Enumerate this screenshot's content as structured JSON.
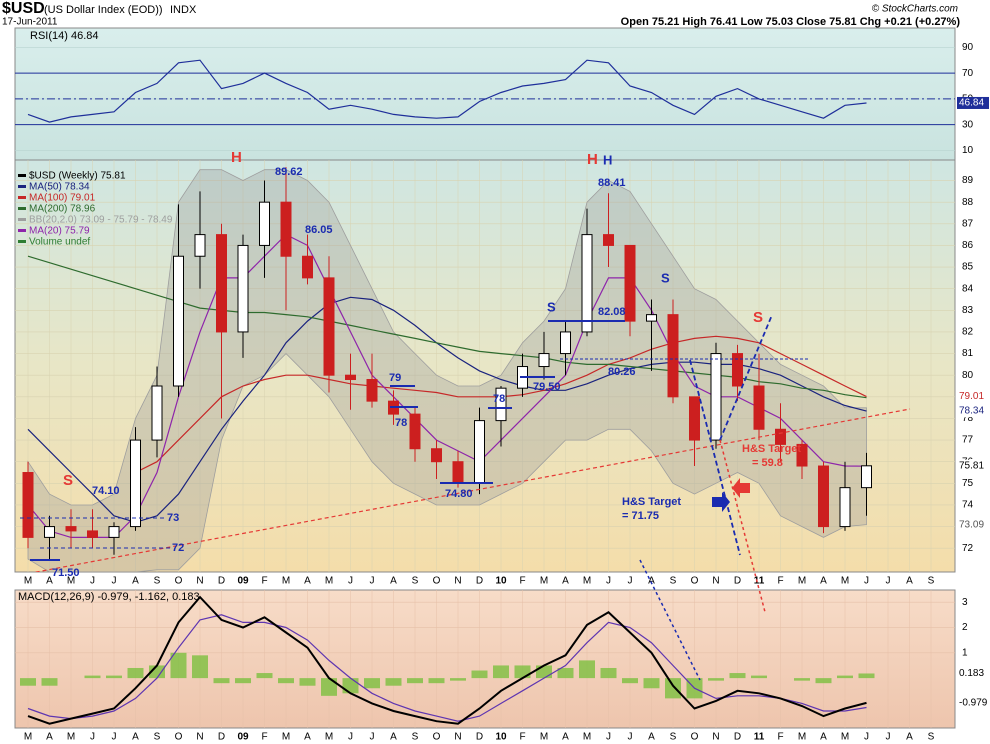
{
  "header": {
    "symbol": "$USD",
    "name": "(US Dollar Index (EOD))",
    "exchange": "INDX",
    "date": "17-Jun-2011",
    "stats": "Open 75.21  High 76.41  Low 75.03  Close 75.81  Chg +0.21 (+0.27%)",
    "credit": "© StockCharts.com"
  },
  "annotations": {
    "h1": "H",
    "h2": "H",
    "h3": "H",
    "s1": "S",
    "s2": "S",
    "s3": "S",
    "s4": "S",
    "p1": "89.62",
    "p2": "86.05",
    "p3": "88.41",
    "p4": "82.08",
    "p5": "80.26",
    "p6": "79.50",
    "p7": "79",
    "p8": "78",
    "p9": "78",
    "p10": "74.80",
    "p11": "74.10",
    "p12": "73",
    "p13": "72",
    "p14": "71.50",
    "t1a": "H&S Target",
    "t1b": "= 71.75",
    "t2a": "H&S Target",
    "t2b": "= 59.8"
  },
  "chart_data": [
    {
      "type": "line",
      "title": "RSI(14) 46.84",
      "color": "#1f2f9a",
      "ylim": [
        2.6,
        105
      ],
      "yticks": [
        10,
        30,
        50,
        70,
        90
      ],
      "reference_lines": [
        30,
        70
      ],
      "center_line": 50,
      "grid": true,
      "values": [
        38,
        32,
        36,
        38,
        40,
        55,
        62,
        78,
        80,
        58,
        62,
        70,
        62,
        55,
        42,
        45,
        42,
        38,
        36,
        35,
        36,
        48,
        55,
        60,
        62,
        65,
        80,
        78,
        60,
        55,
        45,
        38,
        52,
        58,
        50,
        45,
        40,
        35,
        45,
        46.84,
        null,
        null,
        null
      ]
    },
    {
      "type": "candlestick",
      "grid": true,
      "up_color": "#ffffff",
      "down_color": "#cc1f1f",
      "legend": [
        "$USD (Weekly) 75.81",
        "MA(50) 78.34",
        "MA(100) 79.01",
        "MA(200) 78.96",
        "BB(20,2.0) 73.09 - 75.79 - 78.49",
        "MA(20) 75.79",
        "Volume undef"
      ],
      "legend_colors": [
        "#000000",
        "#1a237e",
        "#c62828",
        "#2e6b2e",
        "#9e9e9e",
        "#8e24aa",
        "#2e7d32"
      ],
      "categories": [
        "M",
        "A",
        "M",
        "J",
        "J",
        "A",
        "S",
        "O",
        "N",
        "D",
        "09",
        "F",
        "M",
        "A",
        "M",
        "J",
        "J",
        "A",
        "S",
        "O",
        "N",
        "D",
        "10",
        "F",
        "M",
        "A",
        "M",
        "J",
        "J",
        "A",
        "S",
        "O",
        "N",
        "D",
        "11",
        "F",
        "M",
        "A",
        "M",
        "J",
        "J",
        "A",
        "S"
      ],
      "ylim": [
        70.9,
        89.95
      ],
      "yticks": [
        72,
        73,
        74,
        75,
        76,
        77,
        78,
        79,
        80,
        81,
        82,
        83,
        84,
        85,
        86,
        87,
        88,
        89
      ],
      "open": [
        75.5,
        72.5,
        73.0,
        72.8,
        72.5,
        73.0,
        77.0,
        79.5,
        85.5,
        86.5,
        82.0,
        86.0,
        88.0,
        85.5,
        84.5,
        80.0,
        79.8,
        78.8,
        78.2,
        76.6,
        76.0,
        75.0,
        77.9,
        79.4,
        80.4,
        81.0,
        82.0,
        86.5,
        86.0,
        82.5,
        82.8,
        79.0,
        77.0,
        81.0,
        79.5,
        77.5,
        76.8,
        75.8,
        73.0,
        74.8,
        null,
        null,
        null
      ],
      "high": [
        76,
        73.5,
        73.8,
        73.8,
        73.2,
        77.6,
        80.4,
        87.9,
        88.5,
        87.0,
        86.5,
        89.0,
        89.62,
        86.5,
        85.5,
        81.0,
        81.0,
        79.3,
        78.5,
        77.0,
        76.5,
        78.5,
        79.5,
        81.0,
        82.0,
        82.5,
        87.7,
        88.41,
        86.0,
        83.5,
        83.5,
        79.0,
        81.5,
        81.4,
        81.0,
        78.7,
        77.0,
        76.0,
        76.0,
        76.41,
        null,
        null,
        null
      ],
      "low": [
        72,
        71.5,
        72.0,
        72.0,
        71.7,
        72.8,
        76.2,
        79.0,
        84.0,
        78.0,
        80.8,
        84.5,
        83.0,
        84.2,
        79.2,
        78.4,
        78.5,
        77.7,
        76.0,
        75.2,
        74.8,
        74.5,
        76.7,
        79.0,
        79.8,
        80.0,
        81.8,
        85.0,
        81.8,
        80.2,
        78.7,
        75.8,
        76.6,
        78.8,
        77.0,
        76.0,
        75.2,
        72.7,
        72.8,
        73.5,
        null,
        null,
        null
      ],
      "close": [
        72.5,
        73.0,
        72.8,
        72.5,
        73.0,
        77.0,
        79.5,
        85.5,
        86.5,
        82.0,
        86.0,
        88.0,
        85.5,
        84.5,
        80.0,
        79.8,
        78.8,
        78.2,
        76.6,
        76.0,
        75.0,
        77.9,
        79.4,
        80.4,
        81.0,
        82.0,
        86.5,
        86.0,
        82.5,
        82.8,
        79.0,
        77.0,
        81.0,
        79.5,
        77.5,
        76.8,
        75.8,
        73.0,
        74.8,
        75.81,
        null,
        null,
        null
      ],
      "band": {
        "color": "#9e9e9e",
        "upper": [
          76,
          74.5,
          74,
          74,
          74.5,
          78,
          80,
          88,
          89.5,
          89.5,
          89,
          89.5,
          89.5,
          89,
          88,
          86,
          84,
          82,
          81,
          80,
          79.5,
          79.5,
          80,
          81.5,
          82.5,
          84,
          88,
          89,
          88.5,
          87,
          85.5,
          84,
          83.5,
          82.5,
          81.5,
          80.5,
          80,
          79.5,
          78.5,
          78.49,
          null,
          null,
          null
        ],
        "lower": [
          71.5,
          70.9,
          70.9,
          70.9,
          70.9,
          70.9,
          71,
          71,
          72,
          77,
          79.5,
          80,
          81,
          80,
          79,
          77.5,
          76,
          75,
          74.5,
          74,
          74,
          74,
          74.5,
          75,
          76,
          77,
          77,
          77.5,
          77.5,
          76.5,
          75,
          74.5,
          75,
          75.5,
          75,
          73.5,
          73,
          72.5,
          73,
          73.09,
          null,
          null,
          null
        ]
      },
      "series": [
        {
          "name": "MA(50)",
          "color": "#1a237e",
          "values": [
            77.5,
            76.5,
            75.5,
            74.5,
            73.5,
            73.2,
            73.5,
            74.5,
            76,
            77.5,
            78.8,
            80,
            81.5,
            82.5,
            83.3,
            83.6,
            83.5,
            83,
            82.3,
            81.5,
            80.8,
            80.2,
            79.8,
            79.5,
            79.3,
            79.3,
            79.6,
            80,
            80.3,
            80.5,
            80.6,
            80.6,
            80.5,
            80.5,
            80.3,
            80,
            79.5,
            79,
            78.6,
            78.34,
            null,
            null,
            null
          ]
        },
        {
          "name": "MA(100)",
          "color": "#c62828",
          "values": [
            null,
            null,
            null,
            null,
            null,
            75.5,
            76,
            77,
            78,
            79,
            79.5,
            79.8,
            80,
            80,
            79.8,
            79.6,
            79.5,
            79.4,
            79.3,
            79.2,
            79,
            79,
            79,
            79.1,
            79.3,
            79.6,
            80,
            80.5,
            80.8,
            81.2,
            81.5,
            81.7,
            81.8,
            81.7,
            81.5,
            81,
            80.5,
            80,
            79.5,
            79.01,
            null,
            null,
            null
          ]
        },
        {
          "name": "MA(200)",
          "color": "#2e6b2e",
          "values": [
            85.5,
            85.2,
            84.9,
            84.6,
            84.3,
            84,
            83.7,
            83.4,
            83.1,
            83,
            82.9,
            82.9,
            82.8,
            82.7,
            82.5,
            82.3,
            82.1,
            81.9,
            81.7,
            81.5,
            81.3,
            81.1,
            81,
            80.9,
            80.8,
            80.6,
            80.5,
            80.5,
            80.4,
            80.3,
            80.2,
            80.1,
            80,
            79.9,
            79.7,
            79.6,
            79.4,
            79.3,
            79.1,
            78.96,
            null,
            null,
            null
          ]
        },
        {
          "name": "MA(20)",
          "color": "#8e24aa",
          "values": [
            74,
            72.8,
            72.5,
            72.5,
            72.5,
            73.5,
            75.5,
            79,
            82,
            84.5,
            84.5,
            85.5,
            86.5,
            86,
            84,
            82,
            80,
            79,
            78,
            77,
            76.5,
            76,
            77,
            78,
            79,
            80,
            82.5,
            84.5,
            84.5,
            83,
            81,
            79.5,
            79,
            79,
            78.5,
            78,
            77,
            76,
            75.8,
            75.79,
            null,
            null,
            null
          ]
        }
      ]
    },
    {
      "type": "macd",
      "title": "MACD(12,26,9) -0.979, -1.162, 0.183",
      "grid": true,
      "ylim": [
        -1.97,
        3.48
      ],
      "yticks": [
        1,
        2,
        3
      ],
      "histogram_color": "#7cbf3f",
      "macd": {
        "color": "#000000",
        "values": [
          -1.5,
          -1.8,
          -1.6,
          -1.4,
          -1.2,
          -0.4,
          0.5,
          2.2,
          3.2,
          2.3,
          2.0,
          2.4,
          1.8,
          1.2,
          0,
          -0.6,
          -1.0,
          -1.3,
          -1.5,
          -1.7,
          -1.8,
          -1.2,
          -0.5,
          0,
          0.5,
          0.9,
          2.1,
          2.6,
          1.8,
          1,
          -0.3,
          -1.2,
          -0.9,
          -0.5,
          -0.6,
          -0.8,
          -1.1,
          -1.5,
          -1.2,
          -0.979,
          null,
          null,
          null
        ]
      },
      "signal": {
        "color": "#5e35b1",
        "values": [
          -1.2,
          -1.5,
          -1.6,
          -1.5,
          -1.3,
          -0.8,
          0,
          1.2,
          2.3,
          2.5,
          2.2,
          2.2,
          2,
          1.5,
          0.7,
          0,
          -0.6,
          -1,
          -1.3,
          -1.5,
          -1.7,
          -1.5,
          -1,
          -0.5,
          0,
          0.5,
          1.4,
          2.2,
          2.0,
          1.4,
          0.5,
          -0.4,
          -0.8,
          -0.7,
          -0.7,
          -0.8,
          -1,
          -1.3,
          -1.3,
          -1.162,
          null,
          null,
          null
        ]
      },
      "histogram": [
        -0.3,
        -0.3,
        0,
        0.1,
        0.1,
        0.4,
        0.5,
        1.0,
        0.9,
        -0.2,
        -0.2,
        0.2,
        -0.2,
        -0.3,
        -0.7,
        -0.6,
        -0.4,
        -0.3,
        -0.2,
        -0.2,
        -0.1,
        0.3,
        0.5,
        0.5,
        0.5,
        0.4,
        0.7,
        0.4,
        -0.2,
        -0.4,
        -0.8,
        -0.8,
        -0.1,
        0.2,
        0.1,
        0,
        -0.1,
        -0.2,
        0.1,
        0.183,
        null,
        null,
        null
      ]
    }
  ]
}
